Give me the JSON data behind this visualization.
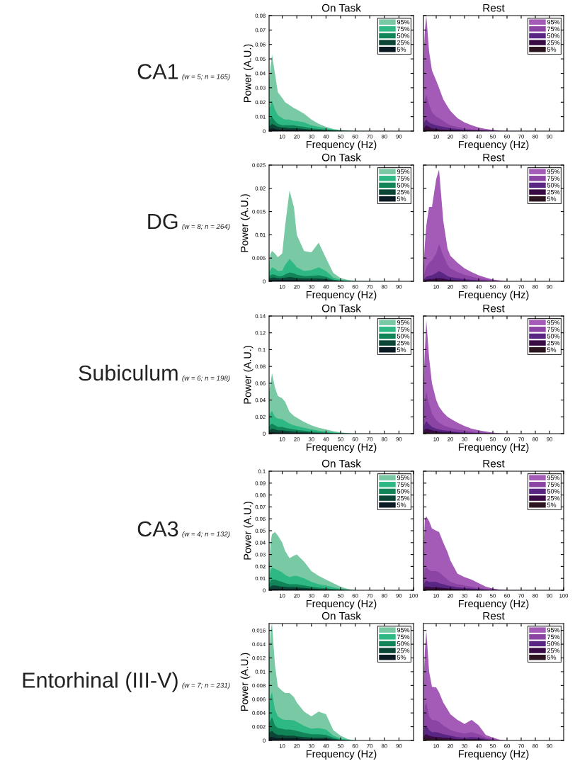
{
  "chart_data": [
    {
      "type": "area",
      "title": "On Task",
      "xlabel": "Frequency (Hz)",
      "ylabel": "Power (A.U.)",
      "annotations": [
        "CA1",
        "(w = 5; n = 165)"
      ],
      "x": [
        1,
        2,
        3,
        5,
        7,
        10,
        12,
        15,
        18,
        20,
        25,
        30,
        35,
        40,
        45,
        50,
        55,
        60,
        100
      ],
      "xlim": [
        1,
        100
      ],
      "xticks": [
        10,
        20,
        30,
        40,
        50,
        60,
        70,
        80,
        90
      ],
      "ylim": [
        0,
        0.08
      ],
      "yticks": [
        0,
        0.01,
        0.02,
        0.03,
        0.04,
        0.05,
        0.06,
        0.07,
        0.08
      ],
      "legend": "top right",
      "series": [
        {
          "name": "95%",
          "color": "#79c9a5",
          "values": [
            0.035,
            0.045,
            0.053,
            0.04,
            0.027,
            0.023,
            0.02,
            0.018,
            0.016,
            0.015,
            0.012,
            0.008,
            0.005,
            0.003,
            0.0015,
            0.0007,
            0.0003,
            0.0001,
            0
          ]
        },
        {
          "name": "75%",
          "color": "#2db884",
          "values": [
            0.015,
            0.018,
            0.021,
            0.015,
            0.011,
            0.009,
            0.008,
            0.008,
            0.007,
            0.007,
            0.006,
            0.004,
            0.003,
            0.002,
            0.001,
            0.0005,
            0.0002,
            0,
            0
          ]
        },
        {
          "name": "50%",
          "color": "#118558",
          "values": [
            0.007,
            0.009,
            0.01,
            0.007,
            0.005,
            0.004,
            0.004,
            0.004,
            0.004,
            0.0035,
            0.003,
            0.002,
            0.0015,
            0.001,
            0.0005,
            0.0002,
            0.0001,
            0,
            0
          ]
        },
        {
          "name": "25%",
          "color": "#0b4536",
          "values": [
            0.003,
            0.004,
            0.005,
            0.004,
            0.003,
            0.0025,
            0.0025,
            0.002,
            0.002,
            0.002,
            0.0015,
            0.001,
            0.0008,
            0.0005,
            0.0003,
            0.0001,
            0,
            0,
            0
          ]
        },
        {
          "name": "5%",
          "color": "#0b1b24",
          "values": [
            0.001,
            0.0015,
            0.002,
            0.0015,
            0.001,
            0.001,
            0.001,
            0.0008,
            0.0008,
            0.0007,
            0.0005,
            0.0004,
            0.0003,
            0.0002,
            0.0001,
            0,
            0,
            0,
            0
          ]
        }
      ]
    },
    {
      "type": "area",
      "title": "Rest",
      "xlabel": "Frequency (Hz)",
      "tick_labels": "x",
      "x": [
        1,
        2,
        3,
        5,
        7,
        10,
        12,
        15,
        18,
        20,
        25,
        30,
        35,
        40,
        45,
        50,
        55,
        60,
        100
      ],
      "xlim": [
        1,
        100
      ],
      "xticks": [
        10,
        20,
        30,
        40,
        50,
        60,
        70,
        80,
        90
      ],
      "ylim": [
        0,
        0.08
      ],
      "yticks": [
        0,
        0.01,
        0.02,
        0.03,
        0.04,
        0.05,
        0.06,
        0.07,
        0.08
      ],
      "legend": "top right",
      "series": [
        {
          "name": "95%",
          "color": "#a45ab7",
          "values": [
            0.05,
            0.07,
            0.08,
            0.055,
            0.042,
            0.035,
            0.03,
            0.022,
            0.017,
            0.014,
            0.009,
            0.006,
            0.004,
            0.0025,
            0.0015,
            0.0008,
            0.0003,
            0.0001,
            0
          ]
        },
        {
          "name": "75%",
          "color": "#8c44a4",
          "values": [
            0.015,
            0.022,
            0.025,
            0.018,
            0.013,
            0.01,
            0.009,
            0.007,
            0.005,
            0.004,
            0.003,
            0.002,
            0.0012,
            0.0008,
            0.0004,
            0.0002,
            0.0001,
            0,
            0
          ]
        },
        {
          "name": "50%",
          "color": "#5a2684",
          "values": [
            0.005,
            0.007,
            0.008,
            0.006,
            0.005,
            0.004,
            0.0035,
            0.003,
            0.0025,
            0.002,
            0.0015,
            0.001,
            0.0006,
            0.0004,
            0.0002,
            0.0001,
            0,
            0,
            0
          ]
        },
        {
          "name": "25%",
          "color": "#3a0c45",
          "values": [
            0.002,
            0.003,
            0.004,
            0.003,
            0.002,
            0.0015,
            0.0012,
            0.001,
            0.0009,
            0.0008,
            0.0006,
            0.0004,
            0.0003,
            0.0002,
            0.0001,
            0,
            0,
            0,
            0
          ]
        },
        {
          "name": "5%",
          "color": "#2c1420",
          "values": [
            0.0005,
            0.0008,
            0.001,
            0.0008,
            0.0006,
            0.0005,
            0.0004,
            0.0004,
            0.0003,
            0.0003,
            0.0002,
            0.0002,
            0.0001,
            0.0001,
            0,
            0,
            0,
            0,
            0
          ]
        }
      ]
    },
    {
      "type": "area",
      "title": "On Task",
      "xlabel": "Frequency (Hz)",
      "ylabel": "Power (A.U.)",
      "annotations": [
        "DG",
        "(w = 8; n = 264)"
      ],
      "x": [
        1,
        2,
        3,
        5,
        7,
        10,
        12,
        15,
        18,
        20,
        25,
        30,
        35,
        40,
        45,
        50,
        55,
        60,
        100
      ],
      "xlim": [
        1,
        100
      ],
      "xticks": [
        10,
        20,
        30,
        40,
        50,
        60,
        70,
        80,
        90
      ],
      "ylim": [
        0,
        0.025
      ],
      "yticks": [
        0,
        0.005,
        0.01,
        0.015,
        0.02,
        0.025
      ],
      "legend": "top right",
      "series": [
        {
          "name": "95%",
          "color": "#79c9a5",
          "values": [
            0.004,
            0.006,
            0.0065,
            0.006,
            0.0052,
            0.006,
            0.012,
            0.0195,
            0.016,
            0.01,
            0.0065,
            0.0062,
            0.0083,
            0.005,
            0.0018,
            0.0007,
            0.0003,
            0.0001,
            0
          ]
        },
        {
          "name": "75%",
          "color": "#2db884",
          "values": [
            0.002,
            0.0025,
            0.003,
            0.0027,
            0.0022,
            0.0023,
            0.0035,
            0.0048,
            0.0038,
            0.003,
            0.0022,
            0.0024,
            0.003,
            0.0022,
            0.0008,
            0.0003,
            0.0001,
            0,
            0
          ]
        },
        {
          "name": "50%",
          "color": "#118558",
          "values": [
            0.001,
            0.0013,
            0.0015,
            0.0014,
            0.0011,
            0.0011,
            0.0015,
            0.0019,
            0.0017,
            0.0014,
            0.0011,
            0.0012,
            0.0013,
            0.001,
            0.0004,
            0.0001,
            0,
            0,
            0
          ]
        },
        {
          "name": "25%",
          "color": "#0b4536",
          "values": [
            0.0005,
            0.0007,
            0.0008,
            0.0008,
            0.0007,
            0.0007,
            0.0008,
            0.0009,
            0.0008,
            0.0007,
            0.0006,
            0.0006,
            0.0006,
            0.0005,
            0.0002,
            0.0001,
            0,
            0,
            0
          ]
        },
        {
          "name": "5%",
          "color": "#0b1b24",
          "values": [
            0.0002,
            0.0003,
            0.0003,
            0.0003,
            0.0003,
            0.0003,
            0.0003,
            0.0003,
            0.0003,
            0.0003,
            0.0002,
            0.0002,
            0.0002,
            0.0002,
            0.0001,
            0,
            0,
            0,
            0
          ]
        }
      ]
    },
    {
      "type": "area",
      "title": "Rest",
      "xlabel": "Frequency (Hz)",
      "tick_labels": "x",
      "x": [
        1,
        2,
        3,
        5,
        7,
        10,
        12,
        15,
        18,
        20,
        25,
        30,
        35,
        40,
        45,
        50,
        55,
        60,
        100
      ],
      "xlim": [
        1,
        100
      ],
      "xticks": [
        10,
        20,
        30,
        40,
        50,
        60,
        70,
        80,
        90
      ],
      "ylim": [
        0,
        0.025
      ],
      "yticks": [
        0,
        0.005,
        0.01,
        0.015,
        0.02,
        0.025
      ],
      "legend": "top right",
      "series": [
        {
          "name": "95%",
          "color": "#a45ab7",
          "values": [
            0.003,
            0.008,
            0.012,
            0.016,
            0.016,
            0.022,
            0.024,
            0.013,
            0.007,
            0.0055,
            0.004,
            0.0028,
            0.002,
            0.0013,
            0.0008,
            0.0004,
            0.0002,
            0,
            0
          ]
        },
        {
          "name": "75%",
          "color": "#8c44a4",
          "values": [
            0.001,
            0.002,
            0.003,
            0.004,
            0.0045,
            0.006,
            0.008,
            0.0055,
            0.0035,
            0.0028,
            0.002,
            0.0014,
            0.001,
            0.0006,
            0.0004,
            0.0002,
            0.0001,
            0,
            0
          ]
        },
        {
          "name": "50%",
          "color": "#5a2684",
          "values": [
            0.0004,
            0.0007,
            0.001,
            0.0012,
            0.0013,
            0.0018,
            0.0022,
            0.0017,
            0.0011,
            0.0009,
            0.0007,
            0.0005,
            0.0003,
            0.0002,
            0.0001,
            0,
            0,
            0,
            0
          ]
        },
        {
          "name": "25%",
          "color": "#3a0c45",
          "values": [
            0.0002,
            0.0003,
            0.0004,
            0.0005,
            0.0005,
            0.0006,
            0.0007,
            0.0006,
            0.0004,
            0.0003,
            0.0002,
            0.0002,
            0.0001,
            0.0001,
            0,
            0,
            0,
            0,
            0
          ]
        },
        {
          "name": "5%",
          "color": "#2c1420",
          "values": [
            0.0001,
            0.0001,
            0.0001,
            0.0002,
            0.0002,
            0.0002,
            0.0002,
            0.0002,
            0.0001,
            0.0001,
            0.0001,
            0,
            0,
            0,
            0,
            0,
            0,
            0,
            0
          ]
        }
      ]
    },
    {
      "type": "area",
      "title": "On Task",
      "xlabel": "Frequency (Hz)",
      "ylabel": "Power (A.U.)",
      "annotations": [
        "Subiculum",
        "(w = 6; n = 198)"
      ],
      "x": [
        1,
        2,
        3,
        5,
        7,
        10,
        12,
        15,
        18,
        20,
        25,
        30,
        35,
        40,
        45,
        50,
        55,
        60,
        100
      ],
      "xlim": [
        1,
        100
      ],
      "xticks": [
        10,
        20,
        30,
        40,
        50,
        60,
        70,
        80,
        90
      ],
      "ylim": [
        0,
        0.14
      ],
      "yticks": [
        0,
        0.02,
        0.04,
        0.06,
        0.08,
        0.1,
        0.12,
        0.14
      ],
      "legend": "top right",
      "series": [
        {
          "name": "95%",
          "color": "#79c9a5",
          "values": [
            0.05,
            0.06,
            0.072,
            0.055,
            0.045,
            0.042,
            0.038,
            0.026,
            0.021,
            0.019,
            0.014,
            0.01,
            0.007,
            0.005,
            0.003,
            0.0015,
            0.0006,
            0.0002,
            0
          ]
        },
        {
          "name": "75%",
          "color": "#2db884",
          "values": [
            0.02,
            0.025,
            0.027,
            0.02,
            0.018,
            0.017,
            0.015,
            0.012,
            0.01,
            0.009,
            0.007,
            0.005,
            0.0035,
            0.0025,
            0.0015,
            0.0008,
            0.0003,
            0.0001,
            0
          ]
        },
        {
          "name": "50%",
          "color": "#118558",
          "values": [
            0.008,
            0.011,
            0.012,
            0.01,
            0.008,
            0.008,
            0.007,
            0.006,
            0.005,
            0.0045,
            0.0035,
            0.0025,
            0.0018,
            0.0012,
            0.0007,
            0.0004,
            0.0001,
            0,
            0
          ]
        },
        {
          "name": "25%",
          "color": "#0b4536",
          "values": [
            0.003,
            0.005,
            0.006,
            0.005,
            0.004,
            0.004,
            0.0035,
            0.003,
            0.0025,
            0.0022,
            0.0018,
            0.0012,
            0.0009,
            0.0006,
            0.0003,
            0.0002,
            0,
            0,
            0
          ]
        },
        {
          "name": "5%",
          "color": "#0b1b24",
          "values": [
            0.001,
            0.0015,
            0.002,
            0.0015,
            0.0013,
            0.0012,
            0.0011,
            0.001,
            0.0009,
            0.0008,
            0.0006,
            0.0004,
            0.0003,
            0.0002,
            0.0001,
            0,
            0,
            0,
            0
          ]
        }
      ]
    },
    {
      "type": "area",
      "title": "Rest",
      "xlabel": "Frequency (Hz)",
      "tick_labels": "x",
      "x": [
        1,
        2,
        3,
        5,
        7,
        10,
        12,
        15,
        18,
        20,
        25,
        30,
        35,
        40,
        45,
        50,
        55,
        60,
        100
      ],
      "xlim": [
        1,
        100
      ],
      "xticks": [
        10,
        20,
        30,
        40,
        50,
        60,
        70,
        80,
        90
      ],
      "ylim": [
        0,
        0.14
      ],
      "yticks": [
        0,
        0.02,
        0.04,
        0.06,
        0.08,
        0.1,
        0.12,
        0.14
      ],
      "legend": "top right",
      "series": [
        {
          "name": "95%",
          "color": "#a45ab7",
          "values": [
            0.06,
            0.1,
            0.135,
            0.09,
            0.06,
            0.04,
            0.032,
            0.025,
            0.02,
            0.018,
            0.013,
            0.009,
            0.006,
            0.004,
            0.0025,
            0.0012,
            0.0005,
            0.0001,
            0
          ]
        },
        {
          "name": "75%",
          "color": "#8c44a4",
          "values": [
            0.025,
            0.04,
            0.05,
            0.035,
            0.024,
            0.016,
            0.013,
            0.01,
            0.008,
            0.007,
            0.005,
            0.0035,
            0.0025,
            0.0015,
            0.001,
            0.0005,
            0.0002,
            0,
            0
          ]
        },
        {
          "name": "50%",
          "color": "#5a2684",
          "values": [
            0.008,
            0.012,
            0.015,
            0.011,
            0.008,
            0.006,
            0.005,
            0.004,
            0.0035,
            0.003,
            0.002,
            0.0015,
            0.001,
            0.0007,
            0.0004,
            0.0002,
            0,
            0,
            0
          ]
        },
        {
          "name": "25%",
          "color": "#3a0c45",
          "values": [
            0.003,
            0.005,
            0.006,
            0.005,
            0.004,
            0.003,
            0.0025,
            0.002,
            0.0018,
            0.0015,
            0.001,
            0.0008,
            0.0005,
            0.0003,
            0.0002,
            0.0001,
            0,
            0,
            0
          ]
        },
        {
          "name": "5%",
          "color": "#2c1420",
          "values": [
            0.001,
            0.0015,
            0.002,
            0.0015,
            0.0012,
            0.001,
            0.0008,
            0.0007,
            0.0006,
            0.0005,
            0.0004,
            0.0003,
            0.0002,
            0.0001,
            0,
            0,
            0,
            0,
            0
          ]
        }
      ]
    },
    {
      "type": "area",
      "title": "On Task",
      "xlabel": "Frequency (Hz)",
      "ylabel": "Power (A.U.)",
      "annotations": [
        "CA3",
        "(w = 4; n = 132)"
      ],
      "x": [
        1,
        2,
        3,
        5,
        7,
        10,
        12,
        15,
        18,
        20,
        25,
        30,
        35,
        40,
        45,
        50,
        55,
        60,
        100
      ],
      "xlim": [
        1,
        100
      ],
      "xticks": [
        10,
        20,
        30,
        40,
        50,
        60,
        70,
        80,
        90,
        100
      ],
      "ylim": [
        0,
        0.1
      ],
      "yticks": [
        0,
        0.01,
        0.02,
        0.03,
        0.04,
        0.05,
        0.06,
        0.07,
        0.08,
        0.09,
        0.1
      ],
      "legend": "top right",
      "series": [
        {
          "name": "95%",
          "color": "#79c9a5",
          "values": [
            0.02,
            0.04,
            0.047,
            0.049,
            0.046,
            0.04,
            0.033,
            0.027,
            0.029,
            0.03,
            0.024,
            0.016,
            0.012,
            0.009,
            0.006,
            0.003,
            0.001,
            0,
            0
          ]
        },
        {
          "name": "75%",
          "color": "#2db884",
          "values": [
            0.01,
            0.017,
            0.019,
            0.018,
            0.017,
            0.015,
            0.013,
            0.011,
            0.012,
            0.012,
            0.01,
            0.007,
            0.005,
            0.004,
            0.0025,
            0.0012,
            0.0004,
            0,
            0
          ]
        },
        {
          "name": "50%",
          "color": "#118558",
          "values": [
            0.005,
            0.008,
            0.009,
            0.009,
            0.008,
            0.007,
            0.006,
            0.005,
            0.005,
            0.005,
            0.004,
            0.003,
            0.0022,
            0.0016,
            0.001,
            0.0005,
            0.0002,
            0,
            0
          ]
        },
        {
          "name": "25%",
          "color": "#0b4536",
          "values": [
            0.002,
            0.003,
            0.004,
            0.004,
            0.0035,
            0.003,
            0.0028,
            0.0025,
            0.0025,
            0.0024,
            0.002,
            0.0015,
            0.0011,
            0.0008,
            0.0005,
            0.0003,
            0.0001,
            0,
            0
          ]
        },
        {
          "name": "5%",
          "color": "#0b1b24",
          "values": [
            0.0005,
            0.001,
            0.0012,
            0.0012,
            0.0011,
            0.001,
            0.0009,
            0.0008,
            0.0008,
            0.0008,
            0.0006,
            0.0005,
            0.0004,
            0.0003,
            0.0002,
            0.0001,
            0,
            0,
            0
          ]
        }
      ]
    },
    {
      "type": "area",
      "title": "Rest",
      "xlabel": "Frequency (Hz)",
      "tick_labels": "x",
      "x": [
        1,
        2,
        3,
        5,
        7,
        10,
        12,
        15,
        18,
        20,
        25,
        30,
        35,
        40,
        45,
        50,
        55,
        60,
        100
      ],
      "xlim": [
        1,
        100
      ],
      "xticks": [
        10,
        20,
        30,
        40,
        50,
        60,
        70,
        80,
        90,
        100
      ],
      "ylim": [
        0,
        0.1
      ],
      "yticks": [
        0,
        0.01,
        0.02,
        0.03,
        0.04,
        0.05,
        0.06,
        0.07,
        0.08,
        0.09,
        0.1
      ],
      "legend": "top right",
      "series": [
        {
          "name": "95%",
          "color": "#a45ab7",
          "values": [
            0.03,
            0.06,
            0.062,
            0.058,
            0.052,
            0.05,
            0.049,
            0.04,
            0.032,
            0.025,
            0.014,
            0.011,
            0.009,
            0.006,
            0.003,
            0.0015,
            0.0005,
            0.0001,
            0
          ]
        },
        {
          "name": "75%",
          "color": "#8c44a4",
          "values": [
            0.01,
            0.018,
            0.019,
            0.017,
            0.016,
            0.016,
            0.015,
            0.012,
            0.009,
            0.007,
            0.005,
            0.004,
            0.003,
            0.002,
            0.001,
            0.0005,
            0.0002,
            0,
            0
          ]
        },
        {
          "name": "50%",
          "color": "#5a2684",
          "values": [
            0.004,
            0.007,
            0.008,
            0.007,
            0.007,
            0.007,
            0.006,
            0.005,
            0.004,
            0.0035,
            0.0025,
            0.002,
            0.0015,
            0.001,
            0.0005,
            0.0003,
            0.0001,
            0,
            0
          ]
        },
        {
          "name": "25%",
          "color": "#3a0c45",
          "values": [
            0.0015,
            0.003,
            0.003,
            0.0028,
            0.0025,
            0.0025,
            0.0024,
            0.002,
            0.0017,
            0.0015,
            0.001,
            0.0008,
            0.0006,
            0.0004,
            0.0002,
            0.0001,
            0,
            0,
            0
          ]
        },
        {
          "name": "5%",
          "color": "#2c1420",
          "values": [
            0.0005,
            0.001,
            0.001,
            0.0009,
            0.0008,
            0.0008,
            0.0008,
            0.0007,
            0.0006,
            0.0005,
            0.0004,
            0.0003,
            0.0002,
            0.0001,
            0,
            0,
            0,
            0,
            0
          ]
        }
      ]
    },
    {
      "type": "area",
      "title": "On Task",
      "xlabel": "Frequency (Hz)",
      "ylabel": "Power (A.U.)",
      "annotations": [
        "Entorhinal (III-V)",
        "(w = 7; n = 231)"
      ],
      "x": [
        1,
        2,
        3,
        5,
        7,
        10,
        12,
        15,
        18,
        20,
        25,
        30,
        35,
        40,
        45,
        50,
        55,
        60,
        100
      ],
      "xlim": [
        1,
        100
      ],
      "xticks": [
        10,
        20,
        30,
        40,
        50,
        60,
        70,
        80,
        90
      ],
      "ylim": [
        0,
        0.017
      ],
      "yticks": [
        0,
        0.002,
        0.004,
        0.006,
        0.008,
        0.01,
        0.012,
        0.014,
        0.016
      ],
      "legend": "top right",
      "series": [
        {
          "name": "95%",
          "color": "#79c9a5",
          "values": [
            0.012,
            0.016,
            0.017,
            0.011,
            0.0078,
            0.0072,
            0.0069,
            0.0069,
            0.0063,
            0.0055,
            0.0042,
            0.0035,
            0.0042,
            0.0038,
            0.0015,
            0.0007,
            0.0002,
            0,
            0
          ]
        },
        {
          "name": "75%",
          "color": "#2db884",
          "values": [
            0.005,
            0.0065,
            0.007,
            0.0045,
            0.0035,
            0.0031,
            0.003,
            0.003,
            0.0029,
            0.0027,
            0.0021,
            0.0017,
            0.0018,
            0.0016,
            0.0007,
            0.0003,
            0.0001,
            0,
            0
          ]
        },
        {
          "name": "50%",
          "color": "#118558",
          "values": [
            0.0025,
            0.003,
            0.0034,
            0.0022,
            0.0018,
            0.0017,
            0.0016,
            0.0016,
            0.0015,
            0.0014,
            0.0011,
            0.0009,
            0.0009,
            0.0008,
            0.0004,
            0.0001,
            0,
            0,
            0
          ]
        },
        {
          "name": "25%",
          "color": "#0b4536",
          "values": [
            0.0011,
            0.0013,
            0.0014,
            0.001,
            0.0008,
            0.0008,
            0.0007,
            0.0007,
            0.0007,
            0.0006,
            0.0005,
            0.0004,
            0.0004,
            0.0004,
            0.0002,
            0.0001,
            0,
            0,
            0
          ]
        },
        {
          "name": "5%",
          "color": "#0b1b24",
          "values": [
            0.0004,
            0.0005,
            0.0005,
            0.0004,
            0.0003,
            0.0003,
            0.0003,
            0.0003,
            0.0003,
            0.0003,
            0.0002,
            0.0002,
            0.0002,
            0.0002,
            0.0001,
            0,
            0,
            0,
            0
          ]
        }
      ]
    },
    {
      "type": "area",
      "title": "Rest",
      "xlabel": "Frequency (Hz)",
      "tick_labels": "x",
      "x": [
        1,
        2,
        3,
        5,
        7,
        10,
        12,
        15,
        18,
        20,
        25,
        30,
        35,
        40,
        45,
        50,
        55,
        60,
        100
      ],
      "xlim": [
        1,
        100
      ],
      "xticks": [
        10,
        20,
        30,
        40,
        50,
        60,
        70,
        80,
        90
      ],
      "ylim": [
        0,
        0.017
      ],
      "yticks": [
        0,
        0.002,
        0.004,
        0.006,
        0.008,
        0.01,
        0.012,
        0.014,
        0.016
      ],
      "legend": "top right",
      "series": [
        {
          "name": "95%",
          "color": "#a45ab7",
          "values": [
            0.008,
            0.013,
            0.016,
            0.01,
            0.0078,
            0.0077,
            0.007,
            0.0055,
            0.0045,
            0.0038,
            0.003,
            0.0024,
            0.003,
            0.0022,
            0.0008,
            0.0004,
            0.0001,
            0,
            0
          ]
        },
        {
          "name": "75%",
          "color": "#8c44a4",
          "values": [
            0.003,
            0.005,
            0.0055,
            0.0035,
            0.003,
            0.0029,
            0.0027,
            0.0022,
            0.0018,
            0.0015,
            0.0012,
            0.001,
            0.0012,
            0.0009,
            0.0004,
            0.0002,
            0,
            0,
            0
          ]
        },
        {
          "name": "50%",
          "color": "#5a2684",
          "values": [
            0.0012,
            0.002,
            0.0022,
            0.0015,
            0.0012,
            0.0012,
            0.0011,
            0.0009,
            0.0008,
            0.0007,
            0.0005,
            0.0004,
            0.0005,
            0.0004,
            0.0002,
            0.0001,
            0,
            0,
            0
          ]
        },
        {
          "name": "25%",
          "color": "#3a0c45",
          "values": [
            0.0005,
            0.0008,
            0.0009,
            0.0007,
            0.0006,
            0.0005,
            0.0005,
            0.0004,
            0.0004,
            0.0003,
            0.0002,
            0.0002,
            0.0002,
            0.0002,
            0.0001,
            0,
            0,
            0,
            0
          ]
        },
        {
          "name": "5%",
          "color": "#2c1420",
          "values": [
            0.0002,
            0.0003,
            0.0003,
            0.0003,
            0.0002,
            0.0002,
            0.0002,
            0.0002,
            0.0001,
            0.0001,
            0.0001,
            0.0001,
            0.0001,
            0,
            0,
            0,
            0,
            0,
            0
          ]
        }
      ]
    }
  ]
}
